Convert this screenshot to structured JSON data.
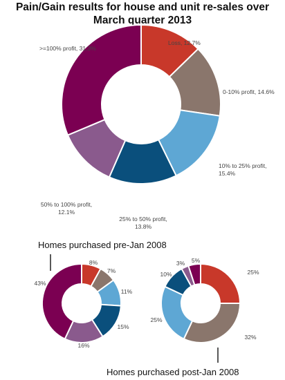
{
  "title_lines": [
    "Pain/Gain results for house and unit re-sales over",
    "March quarter 2013"
  ],
  "chart_data": [
    {
      "type": "pie",
      "donut": true,
      "slices": [
        {
          "label": "Loss, 12.7%",
          "value": 12.7,
          "color": "#c8382a"
        },
        {
          "label": "0-10% profit, 14.6%",
          "value": 14.6,
          "color": "#8a766c"
        },
        {
          "label": "10% to 25% profit, 15.4%",
          "value": 15.4,
          "color": "#5ea7d4"
        },
        {
          "label": "25% to 50% profit, 13.8%",
          "value": 13.8,
          "color": "#0a4f7c"
        },
        {
          "label": "50% to 100% profit, 12.1%",
          "value": 12.1,
          "color": "#8a5a8d"
        },
        {
          "label": ">=100% profit, 31.3%",
          "value": 31.3,
          "color": "#7b0052"
        }
      ],
      "title": "",
      "legend": "none"
    },
    {
      "type": "pie",
      "donut": true,
      "caption": "Homes purchased pre-Jan 2008",
      "slices": [
        {
          "label": "8%",
          "value": 8,
          "color": "#c8382a"
        },
        {
          "label": "7%",
          "value": 7,
          "color": "#8a766c"
        },
        {
          "label": "11%",
          "value": 11,
          "color": "#5ea7d4"
        },
        {
          "label": "15%",
          "value": 15,
          "color": "#0a4f7c"
        },
        {
          "label": "16%",
          "value": 16,
          "color": "#8a5a8d"
        },
        {
          "label": "43%",
          "value": 43,
          "color": "#7b0052"
        }
      ],
      "legend": "none"
    },
    {
      "type": "pie",
      "donut": true,
      "caption": "Homes purchased post-Jan 2008",
      "slices": [
        {
          "label": "25%",
          "value": 25,
          "color": "#c8382a"
        },
        {
          "label": "32%",
          "value": 32,
          "color": "#8a766c"
        },
        {
          "label": "25%",
          "value": 25,
          "color": "#5ea7d4"
        },
        {
          "label": "10%",
          "value": 10,
          "color": "#0a4f7c"
        },
        {
          "label": "3%",
          "value": 3,
          "color": "#8a5a8d"
        },
        {
          "label": "5%",
          "value": 5,
          "color": "#7b0052"
        }
      ],
      "legend": "none"
    }
  ]
}
